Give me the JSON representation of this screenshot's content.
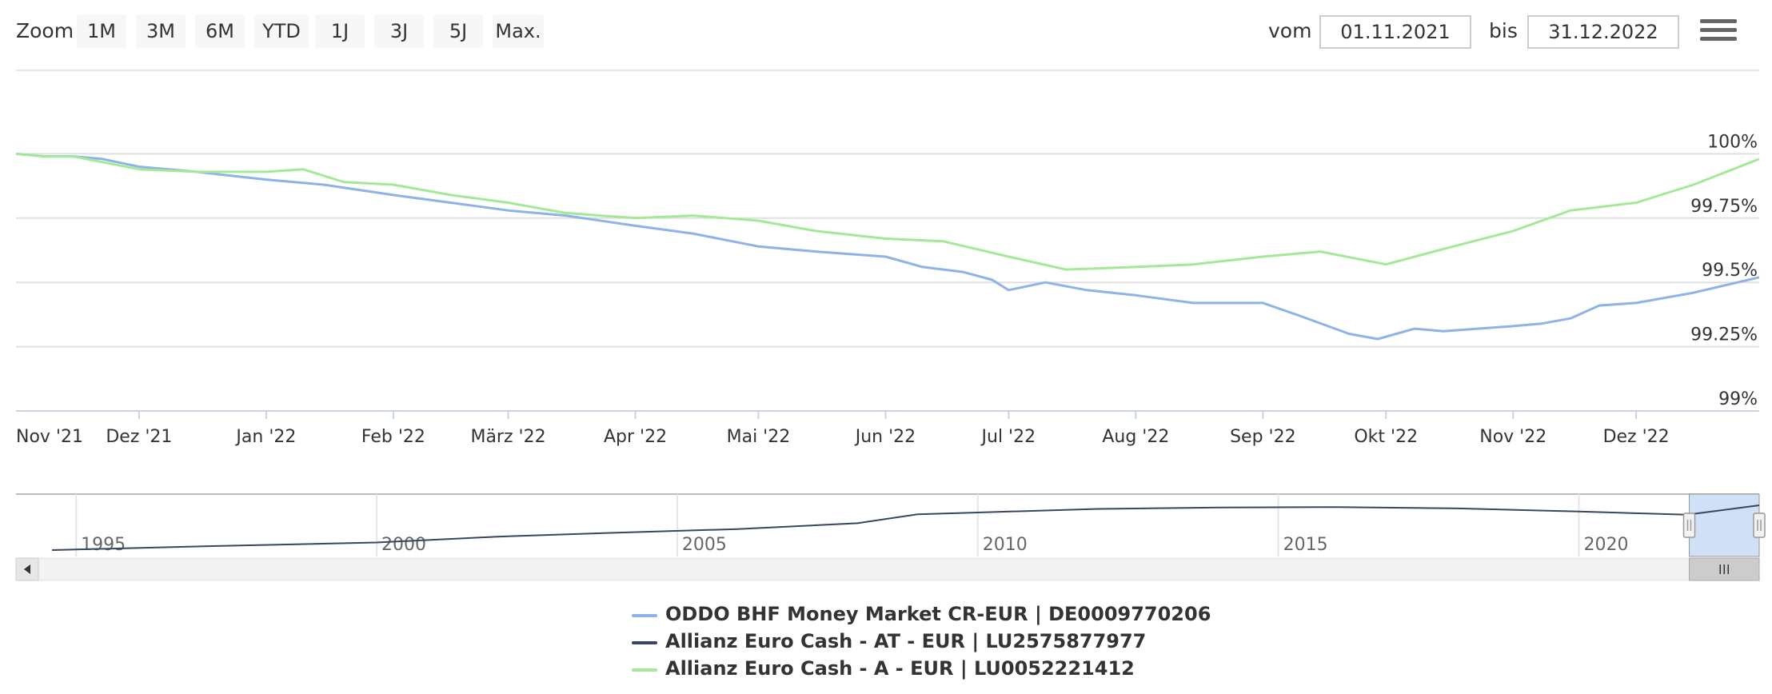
{
  "toolbar": {
    "zoom_label": "Zoom",
    "zoom_buttons": [
      "1M",
      "3M",
      "6M",
      "YTD",
      "1J",
      "3J",
      "5J",
      "Max."
    ],
    "from_label": "vom",
    "from_value": "01.11.2021",
    "to_label": "bis",
    "to_value": "31.12.2022"
  },
  "colors": {
    "oddo": "#8eb3e6",
    "allianz_at": "#36475e",
    "allianz_a": "#a6e89a",
    "navigator_fill": "#cfe0f7",
    "scrollbar_bg": "#f2f2f2",
    "scroll_thumb": "#cccccc"
  },
  "chart_data": {
    "type": "line",
    "x_labels": [
      "Nov '21",
      "Dez '21",
      "Jan '22",
      "Feb '22",
      "März '22",
      "Apr '22",
      "Mai '22",
      "Jun '22",
      "Jul '22",
      "Aug '22",
      "Sep '22",
      "Okt '22",
      "Nov '22",
      "Dez '22"
    ],
    "y_labels": [
      "100%",
      "99.75%",
      "99.5%",
      "99.25%",
      "99%"
    ],
    "ylim": [
      99,
      100.25
    ],
    "y_ticks": [
      100,
      99.75,
      99.5,
      99.25,
      99
    ],
    "grid": true,
    "legend_position": "bottom-center",
    "x_start": "2021-11-01",
    "x_end": "2022-12-31",
    "series": [
      {
        "name": "ODDO BHF Money Market CR-EUR | DE0009770206",
        "x": [
          "2021-11-01",
          "2021-11-08",
          "2021-11-15",
          "2021-11-22",
          "2021-12-01",
          "2021-12-15",
          "2022-01-01",
          "2022-01-15",
          "2022-02-01",
          "2022-02-15",
          "2022-03-01",
          "2022-03-15",
          "2022-04-01",
          "2022-04-15",
          "2022-05-01",
          "2022-05-15",
          "2022-06-01",
          "2022-06-10",
          "2022-06-20",
          "2022-06-27",
          "2022-07-01",
          "2022-07-10",
          "2022-07-20",
          "2022-08-01",
          "2022-08-15",
          "2022-09-01",
          "2022-09-10",
          "2022-09-22",
          "2022-09-29",
          "2022-10-08",
          "2022-10-15",
          "2022-11-01",
          "2022-11-08",
          "2022-11-15",
          "2022-11-22",
          "2022-12-01",
          "2022-12-15",
          "2022-12-31"
        ],
        "y": [
          100.0,
          99.99,
          99.99,
          99.98,
          99.95,
          99.93,
          99.9,
          99.88,
          99.84,
          99.81,
          99.78,
          99.76,
          99.72,
          99.69,
          99.64,
          99.62,
          99.6,
          99.56,
          99.54,
          99.51,
          99.47,
          99.5,
          99.47,
          99.45,
          99.42,
          99.42,
          99.37,
          99.3,
          99.28,
          99.32,
          99.31,
          99.33,
          99.34,
          99.36,
          99.41,
          99.42,
          99.46,
          99.52
        ]
      },
      {
        "name": "Allianz Euro Cash - AT - EUR | LU2575877977",
        "x": [],
        "y": []
      },
      {
        "name": "Allianz Euro Cash - A - EUR | LU0052221412",
        "x": [
          "2021-11-01",
          "2021-11-08",
          "2021-11-15",
          "2021-12-01",
          "2021-12-15",
          "2022-01-01",
          "2022-01-10",
          "2022-01-20",
          "2022-02-01",
          "2022-02-15",
          "2022-03-01",
          "2022-03-15",
          "2022-04-01",
          "2022-04-15",
          "2022-05-01",
          "2022-05-15",
          "2022-06-01",
          "2022-06-15",
          "2022-07-01",
          "2022-07-15",
          "2022-08-01",
          "2022-08-15",
          "2022-09-01",
          "2022-09-15",
          "2022-10-01",
          "2022-10-15",
          "2022-11-01",
          "2022-11-15",
          "2022-12-01",
          "2022-12-15",
          "2022-12-31"
        ],
        "y": [
          100.0,
          99.99,
          99.99,
          99.94,
          99.93,
          99.93,
          99.94,
          99.89,
          99.88,
          99.84,
          99.81,
          99.77,
          99.75,
          99.76,
          99.74,
          99.7,
          99.67,
          99.66,
          99.6,
          99.55,
          99.56,
          99.57,
          99.6,
          99.62,
          99.57,
          99.63,
          99.7,
          99.78,
          99.81,
          99.88,
          99.98
        ]
      }
    ],
    "navigator": {
      "x_labels": [
        "1995",
        "2000",
        "2005",
        "2010",
        "2015",
        "2020"
      ],
      "x_range": [
        1994,
        2023
      ],
      "selection": [
        "2021-11-01",
        "2022-12-31"
      ],
      "series_x": [
        1994.6,
        1997,
        2000,
        2002,
        2004,
        2006,
        2008,
        2009,
        2010,
        2012,
        2014,
        2016,
        2018,
        2020,
        2021.8,
        2023
      ],
      "series_y": [
        0.0,
        0.08,
        0.17,
        0.3,
        0.39,
        0.47,
        0.6,
        0.8,
        0.84,
        0.92,
        0.95,
        0.96,
        0.93,
        0.86,
        0.79,
        1.0
      ]
    }
  },
  "legend": [
    {
      "label": "ODDO BHF Money Market CR-EUR | DE0009770206",
      "color": "#8eb3e6"
    },
    {
      "label": "Allianz Euro Cash - AT - EUR | LU2575877977",
      "color": "#36475e"
    },
    {
      "label": "Allianz Euro Cash - A - EUR | LU0052221412",
      "color": "#a6e89a"
    }
  ]
}
